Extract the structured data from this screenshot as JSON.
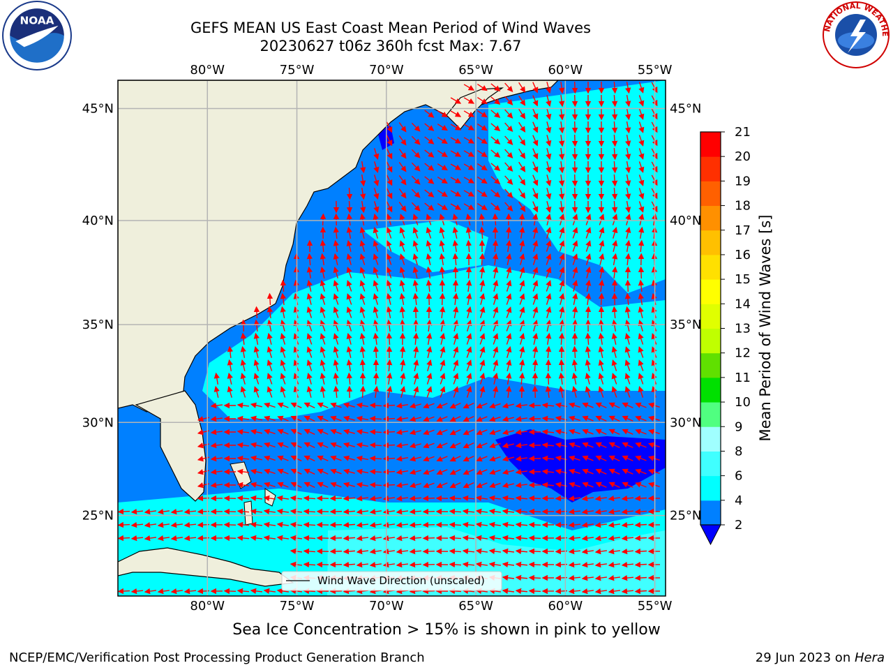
{
  "title": {
    "line1": "GEFS MEAN US East Coast Mean Period of Wind Waves",
    "line2": "20230627 t06z 360h fcst   Max: 7.67"
  },
  "subtitle": "Sea Ice Concentration > 15% is shown in pink to yellow",
  "footer": {
    "left": "NCEP/EMC/Verification Post Processing Product Generation Branch",
    "right_date": "29 Jun 2023 on ",
    "right_host": "Hera"
  },
  "logos": {
    "noaa_text": "NOAA",
    "nws_text": "NATIONAL WEATHER SERVICE"
  },
  "map": {
    "lon_ticks": [
      "80°W",
      "75°W",
      "70°W",
      "65°W",
      "60°W",
      "55°W"
    ],
    "lon_values": [
      -80,
      -75,
      -70,
      -65,
      -60,
      -55
    ],
    "lat_ticks": [
      "45°N",
      "40°N",
      "35°N",
      "30°N",
      "25°N"
    ],
    "lat_values": [
      45,
      40,
      35,
      30,
      25
    ],
    "lon_range": [
      -85,
      -54.4
    ],
    "lat_range": [
      20.5,
      46.2
    ],
    "legend_text": "Wind Wave Direction (unscaled)",
    "colors": {
      "land": "#efefdc",
      "grid": "#b4b4b4",
      "arrow": "#ff0000",
      "coast": "#000000"
    }
  },
  "colorbar": {
    "label": "Mean Period of Wind Waves [s]",
    "tick_labels": [
      "2",
      "4",
      "6",
      "8",
      "9",
      "10",
      "11",
      "12",
      "13",
      "14",
      "15",
      "16",
      "17",
      "18",
      "19",
      "20",
      "21"
    ],
    "colors": [
      "#0080ff",
      "#00ffff",
      "#40ffff",
      "#a0ffff",
      "#50ff80",
      "#00e000",
      "#60e000",
      "#c0ff00",
      "#e0ff00",
      "#ffff00",
      "#ffe000",
      "#ffc000",
      "#ff9000",
      "#ff6000",
      "#ff3000",
      "#ff0000"
    ],
    "extend_color": "#0000ff"
  }
}
